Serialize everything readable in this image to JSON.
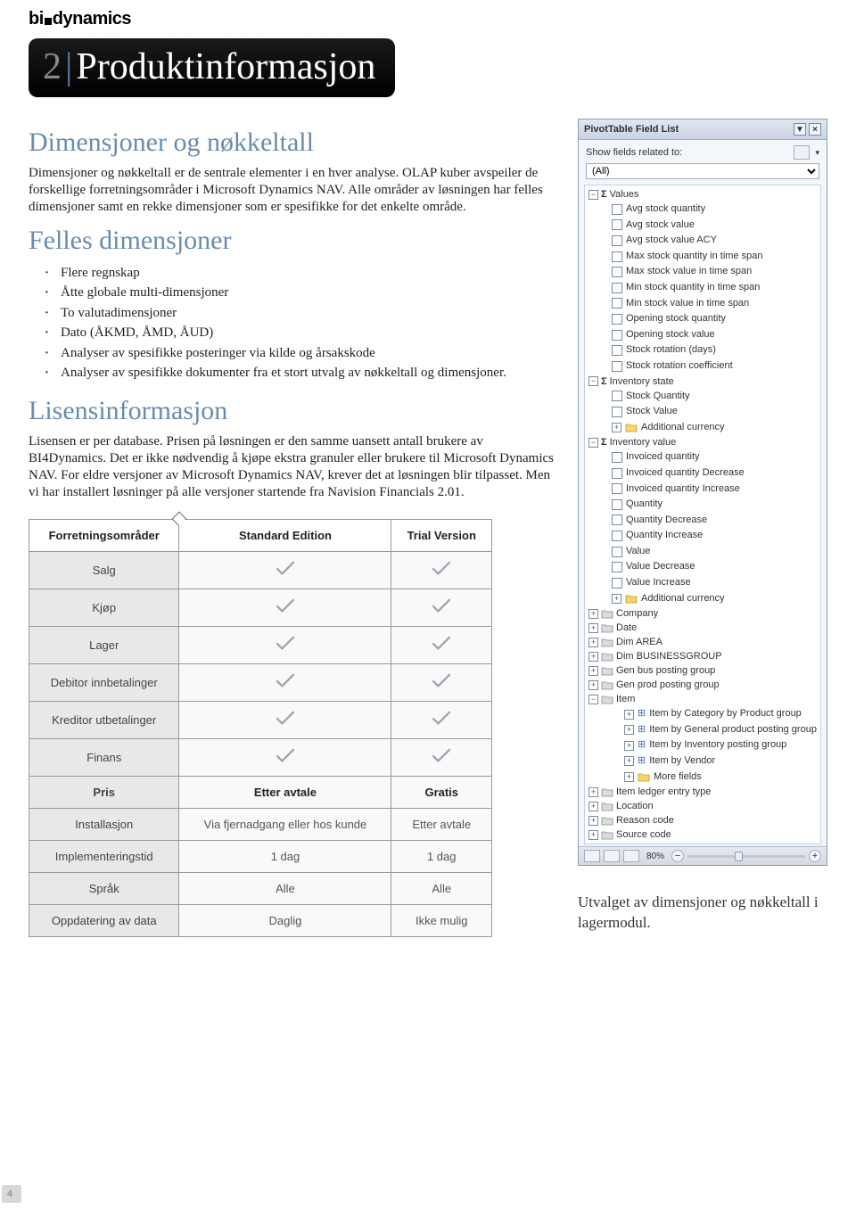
{
  "logo": {
    "prefix": "bi",
    "suffix": "dynamics"
  },
  "title": {
    "number": "2",
    "text": "Produktinformasjon"
  },
  "heading1": "Dimensjoner og nøkkeltall",
  "para1": "Dimensjoner og nøkkeltall er de sentrale elementer i en hver analyse. OLAP kuber avspeiler de forskellige forretningsområder i Microsoft Dynamics NAV. Alle områder av løsningen har felles dimensjoner samt en rekke dimensjoner som er spesifikke for det enkelte område.",
  "heading2": "Felles dimensjoner",
  "bullets": [
    "Flere regnskap",
    "Åtte globale multi-dimensjoner",
    "To valutadimensjoner",
    "Dato (ÅKMD, ÅMD, ÅUD)",
    "Analyser av spesifikke posteringer via kilde og årsakskode",
    "Analyser av spesifikke dokumenter fra et stort utvalg av nøkkeltall og dimensjoner."
  ],
  "heading3": "Lisensinformasjon",
  "para3": "Lisensen er per database. Prisen på løsningen er den samme uansett antall brukere av BI4Dynamics. Det er ikke nødvendig å kjøpe ekstra granuler eller brukere til Microsoft Dynamics NAV. For eldre versjoner av Microsoft Dynamics NAV, krever det at løsningen blir tilpasset. Men vi har installert løsninger på alle versjoner startende fra Navision Financials 2.01.",
  "comp_table": {
    "headers": [
      "Forretningsområder",
      "Standard Edition",
      "Trial Version"
    ],
    "rows": [
      {
        "label": "Salg",
        "std": "check",
        "trial": "check"
      },
      {
        "label": "Kjøp",
        "std": "check",
        "trial": "check"
      },
      {
        "label": "Lager",
        "std": "check",
        "trial": "check"
      },
      {
        "label": "Debitor innbetalinger",
        "std": "check",
        "trial": "check"
      },
      {
        "label": "Kreditor utbetalinger",
        "std": "check",
        "trial": "check"
      },
      {
        "label": "Finans",
        "std": "check",
        "trial": "check"
      },
      {
        "label": "Pris",
        "std": "Etter avtale",
        "trial": "Gratis",
        "bold": true
      },
      {
        "label": "Installasjon",
        "std": "Via fjernadgang eller hos kunde",
        "trial": "Etter avtale"
      },
      {
        "label": "Implementeringstid",
        "std": "1 dag",
        "trial": "1 dag"
      },
      {
        "label": "Språk",
        "std": "Alle",
        "trial": "Alle"
      },
      {
        "label": "Oppdatering av data",
        "std": "Daglig",
        "trial": "Ikke mulig"
      }
    ]
  },
  "pivot": {
    "title": "PivotTable Field List",
    "show_label": "Show fields related to:",
    "filter": "(All)",
    "values_label": "Values",
    "values": [
      "Avg stock quantity",
      "Avg stock value",
      "Avg stock value ACY",
      "Max stock quantity in time span",
      "Max stock value in time span",
      "Min stock quantity in time span",
      "Min stock value in time span",
      "Opening stock quantity",
      "Opening stock value",
      "Stock rotation (days)",
      "Stock rotation coefficient"
    ],
    "inv_state_label": "Inventory state",
    "inv_state": [
      "Stock Quantity",
      "Stock Value",
      "Additional currency"
    ],
    "inv_value_label": "Inventory value",
    "inv_value": [
      "Invoiced quantity",
      "Invoiced quantity Decrease",
      "Invoiced quantity Increase",
      "Quantity",
      "Quantity Decrease",
      "Quantity Increase",
      "Value",
      "Value Decrease",
      "Value Increase",
      "Additional currency"
    ],
    "dims": [
      "Company",
      "Date",
      "Dim AREA",
      "Dim BUSINESSGROUP",
      "Gen bus posting group",
      "Gen prod posting group"
    ],
    "item_label": "Item",
    "item_subs": [
      "Item by Category by Product group",
      "Item by General product posting group",
      "Item by Inventory posting group",
      "Item by Vendor",
      "More fields"
    ],
    "dims2": [
      "Item ledger entry type",
      "Location",
      "Reason code",
      "Source code"
    ],
    "zoom": "80%"
  },
  "caption": "Utvalget av dimensjoner og nøkkeltall i lagermodul.",
  "page": "4"
}
